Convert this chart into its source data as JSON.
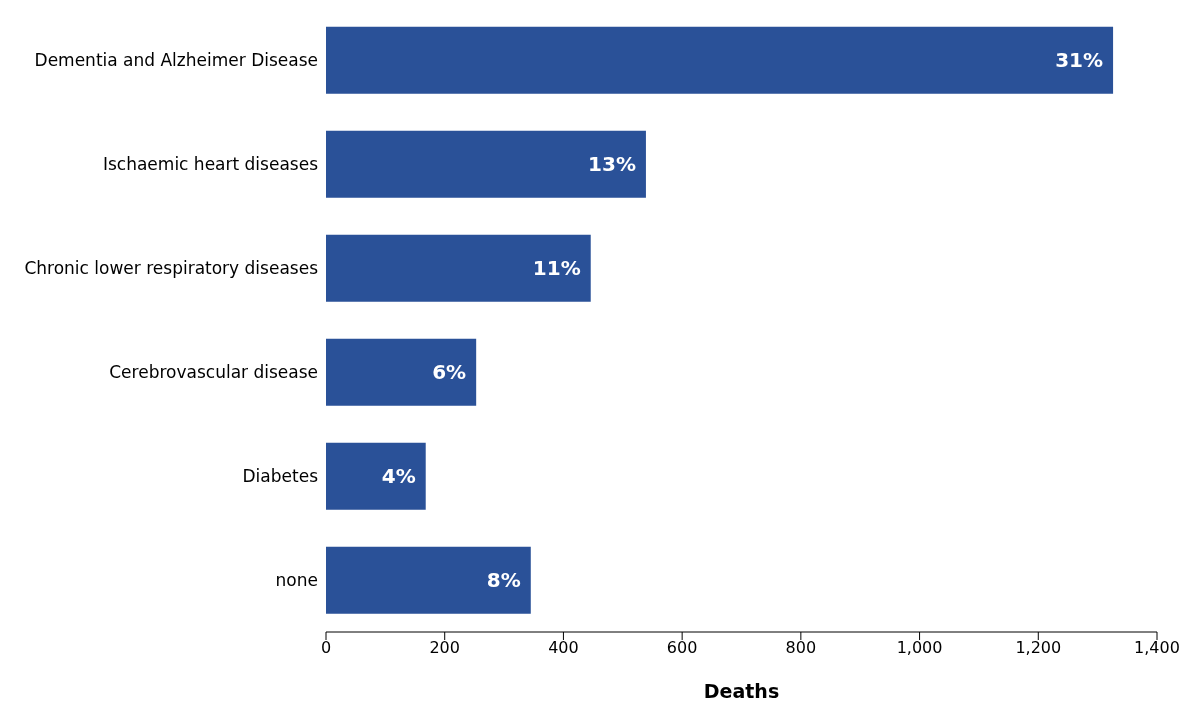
{
  "chart_data": {
    "type": "bar",
    "orientation": "horizontal",
    "xlabel": "Deaths",
    "categories": [
      "Dementia and Alzheimer Disease",
      "Ischaemic heart diseases",
      "Chronic lower respiratory diseases",
      "Cerebrovascular disease",
      "Diabetes",
      "none"
    ],
    "values": [
      1326,
      539,
      446,
      253,
      168,
      345
    ],
    "annotations": [
      {
        "text": "31%",
        "x": 1326,
        "y": "Dementia and Alzheimer Disease"
      },
      {
        "text": "13%",
        "x": 539,
        "y": "Ischaemic heart diseases"
      },
      {
        "text": "11%",
        "x": 446,
        "y": "Chronic lower respiratory diseases"
      },
      {
        "text": "6%",
        "x": 253,
        "y": "Cerebrovascular disease"
      },
      {
        "text": "4%",
        "x": 168,
        "y": "Diabetes"
      },
      {
        "text": "8%",
        "x": 345,
        "y": "none"
      }
    ],
    "color": "#2a5198",
    "xlim": [
      0,
      1400
    ],
    "xticks": [
      0,
      200,
      400,
      600,
      800,
      {
        "value": 1000,
        "label": "1,000"
      },
      {
        "value": 1200,
        "label": "1,200"
      },
      {
        "value": 1400,
        "label": "1,400"
      }
    ],
    "grid": false,
    "legend": false
  }
}
